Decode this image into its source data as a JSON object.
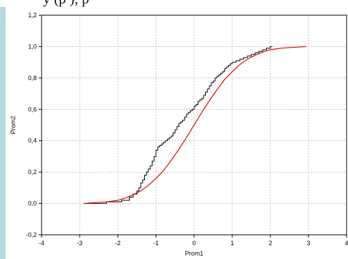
{
  "caption_fragment": "y       (р         ),  р",
  "chart_data": {
    "type": "line",
    "xlabel": "Prom1",
    "ylabel": "Prom2",
    "xlim": [
      -4,
      4
    ],
    "ylim": [
      -0.2,
      1.2
    ],
    "xticks": [
      -4,
      -3,
      -2,
      -1,
      0,
      1,
      2,
      3,
      4
    ],
    "yticks": [
      -0.2,
      0.0,
      0.2,
      0.4,
      0.6,
      0.8,
      1.0,
      1.2
    ],
    "xtick_labels": [
      "-4",
      "-3",
      "-2",
      "-1",
      "0",
      "1",
      "2",
      "3",
      "4"
    ],
    "ytick_labels": [
      "-0,2",
      "0,0",
      "0,2",
      "0,4",
      "0,6",
      "0,8",
      "1,0",
      "1,2"
    ],
    "grid": true,
    "series": [
      {
        "kind": "step",
        "color": "#000000",
        "x": [
          -2.9,
          -2.3,
          -1.9,
          -1.7,
          -1.6,
          -1.5,
          -1.45,
          -1.4,
          -1.35,
          -1.3,
          -1.25,
          -1.2,
          -1.15,
          -1.1,
          -1.05,
          -1.0,
          -0.95,
          -0.9,
          -0.85,
          -0.8,
          -0.75,
          -0.7,
          -0.65,
          -0.6,
          -0.55,
          -0.5,
          -0.45,
          -0.4,
          -0.35,
          -0.3,
          -0.25,
          -0.2,
          -0.15,
          -0.1,
          -0.05,
          0.0,
          0.05,
          0.1,
          0.15,
          0.2,
          0.25,
          0.3,
          0.35,
          0.4,
          0.45,
          0.5,
          0.55,
          0.6,
          0.65,
          0.7,
          0.75,
          0.8,
          0.85,
          0.9,
          0.95,
          1.0,
          1.1,
          1.2,
          1.3,
          1.4,
          1.5,
          1.6,
          1.7,
          1.8,
          1.9,
          2.0,
          2.05
        ],
        "y": [
          0.0,
          0.01,
          0.02,
          0.04,
          0.06,
          0.08,
          0.1,
          0.13,
          0.15,
          0.18,
          0.2,
          0.22,
          0.24,
          0.27,
          0.3,
          0.34,
          0.36,
          0.37,
          0.38,
          0.39,
          0.4,
          0.41,
          0.42,
          0.43,
          0.45,
          0.47,
          0.49,
          0.51,
          0.52,
          0.53,
          0.55,
          0.57,
          0.58,
          0.59,
          0.6,
          0.62,
          0.63,
          0.65,
          0.66,
          0.67,
          0.69,
          0.71,
          0.73,
          0.75,
          0.77,
          0.78,
          0.8,
          0.81,
          0.82,
          0.83,
          0.84,
          0.86,
          0.87,
          0.88,
          0.89,
          0.9,
          0.91,
          0.92,
          0.93,
          0.94,
          0.95,
          0.96,
          0.97,
          0.98,
          0.99,
          1.0,
          1.0
        ]
      },
      {
        "kind": "line",
        "color": "#e00000",
        "x": [
          -2.9,
          -2.6,
          -2.3,
          -2.0,
          -1.8,
          -1.6,
          -1.4,
          -1.2,
          -1.0,
          -0.8,
          -0.6,
          -0.4,
          -0.2,
          0.0,
          0.2,
          0.4,
          0.6,
          0.8,
          1.0,
          1.2,
          1.4,
          1.6,
          1.8,
          2.0,
          2.3,
          2.6,
          2.95
        ],
        "y": [
          0.0,
          0.005,
          0.01,
          0.02,
          0.035,
          0.055,
          0.08,
          0.115,
          0.16,
          0.21,
          0.275,
          0.345,
          0.42,
          0.5,
          0.58,
          0.655,
          0.725,
          0.79,
          0.84,
          0.885,
          0.92,
          0.945,
          0.965,
          0.98,
          0.99,
          0.995,
          1.0
        ]
      }
    ]
  }
}
